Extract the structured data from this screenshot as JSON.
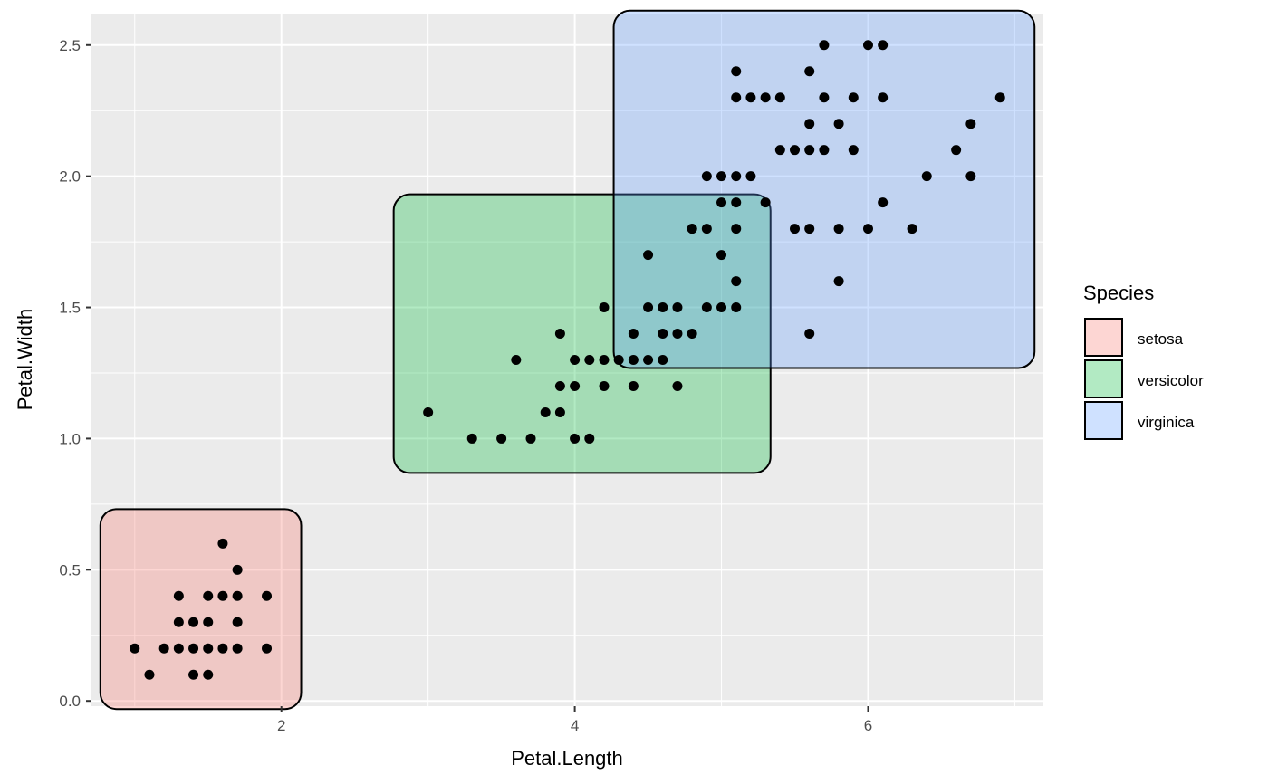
{
  "chart_data": {
    "type": "scatter",
    "xlabel": "Petal.Length",
    "ylabel": "Petal.Width",
    "xlim": [
      0.705,
      7.195
    ],
    "ylim": [
      -0.02,
      2.62
    ],
    "x_ticks": [
      2,
      4,
      6
    ],
    "x_tick_labels": [
      "2",
      "4",
      "6"
    ],
    "y_ticks": [
      0.0,
      0.5,
      1.0,
      1.5,
      2.0,
      2.5
    ],
    "y_tick_labels": [
      "0.0",
      "0.5",
      "1.0",
      "1.5",
      "2.0",
      "2.5"
    ],
    "grid": true,
    "legend_placement": "right",
    "legend_title": "Species",
    "colors": {
      "panel_background": "#EBEBEB",
      "grid": "#FFFFFF",
      "point": "#000000",
      "setosa": "#F8766D",
      "versicolor": "#00BA38",
      "virginica": "#619CFF"
    },
    "groups": [
      {
        "name": "setosa",
        "xmin": 1.0,
        "xmax": 1.9,
        "ymin": 0.1,
        "ymax": 0.6
      },
      {
        "name": "versicolor",
        "xmin": 3.0,
        "xmax": 5.1,
        "ymin": 1.0,
        "ymax": 1.8
      },
      {
        "name": "virginica",
        "xmin": 4.5,
        "xmax": 6.9,
        "ymin": 1.4,
        "ymax": 2.5
      }
    ],
    "points": [
      [
        1.0,
        0.2
      ],
      [
        1.1,
        0.1
      ],
      [
        1.2,
        0.2
      ],
      [
        1.3,
        0.2
      ],
      [
        1.3,
        0.3
      ],
      [
        1.3,
        0.4
      ],
      [
        1.4,
        0.1
      ],
      [
        1.4,
        0.2
      ],
      [
        1.4,
        0.3
      ],
      [
        1.5,
        0.1
      ],
      [
        1.5,
        0.2
      ],
      [
        1.5,
        0.3
      ],
      [
        1.5,
        0.4
      ],
      [
        1.6,
        0.2
      ],
      [
        1.6,
        0.4
      ],
      [
        1.6,
        0.6
      ],
      [
        1.7,
        0.2
      ],
      [
        1.7,
        0.3
      ],
      [
        1.7,
        0.4
      ],
      [
        1.7,
        0.5
      ],
      [
        1.9,
        0.2
      ],
      [
        1.9,
        0.4
      ],
      [
        3.0,
        1.1
      ],
      [
        3.3,
        1.0
      ],
      [
        3.5,
        1.0
      ],
      [
        3.6,
        1.3
      ],
      [
        3.7,
        1.0
      ],
      [
        3.8,
        1.1
      ],
      [
        3.9,
        1.1
      ],
      [
        3.9,
        1.2
      ],
      [
        3.9,
        1.4
      ],
      [
        4.0,
        1.0
      ],
      [
        4.0,
        1.2
      ],
      [
        4.0,
        1.3
      ],
      [
        4.1,
        1.0
      ],
      [
        4.1,
        1.3
      ],
      [
        4.2,
        1.2
      ],
      [
        4.2,
        1.3
      ],
      [
        4.2,
        1.5
      ],
      [
        4.3,
        1.3
      ],
      [
        4.4,
        1.2
      ],
      [
        4.4,
        1.3
      ],
      [
        4.4,
        1.4
      ],
      [
        4.5,
        1.3
      ],
      [
        4.5,
        1.5
      ],
      [
        4.6,
        1.3
      ],
      [
        4.6,
        1.4
      ],
      [
        4.6,
        1.5
      ],
      [
        4.7,
        1.2
      ],
      [
        4.7,
        1.4
      ],
      [
        4.7,
        1.5
      ],
      [
        4.8,
        1.4
      ],
      [
        4.8,
        1.8
      ],
      [
        4.9,
        1.5
      ],
      [
        5.0,
        1.7
      ],
      [
        5.1,
        1.6
      ],
      [
        4.5,
        1.7
      ],
      [
        4.8,
        1.8
      ],
      [
        4.9,
        1.8
      ],
      [
        4.9,
        2.0
      ],
      [
        5.0,
        1.5
      ],
      [
        5.0,
        1.9
      ],
      [
        5.0,
        2.0
      ],
      [
        5.1,
        1.5
      ],
      [
        5.1,
        1.8
      ],
      [
        5.1,
        1.9
      ],
      [
        5.1,
        2.0
      ],
      [
        5.1,
        2.3
      ],
      [
        5.1,
        2.4
      ],
      [
        5.2,
        2.0
      ],
      [
        5.2,
        2.3
      ],
      [
        5.3,
        1.9
      ],
      [
        5.3,
        2.3
      ],
      [
        5.4,
        2.1
      ],
      [
        5.4,
        2.3
      ],
      [
        5.5,
        1.8
      ],
      [
        5.5,
        2.1
      ],
      [
        5.6,
        1.4
      ],
      [
        5.6,
        1.8
      ],
      [
        5.6,
        2.1
      ],
      [
        5.6,
        2.2
      ],
      [
        5.6,
        2.4
      ],
      [
        5.7,
        2.1
      ],
      [
        5.7,
        2.3
      ],
      [
        5.7,
        2.5
      ],
      [
        5.8,
        1.6
      ],
      [
        5.8,
        1.8
      ],
      [
        5.8,
        2.2
      ],
      [
        5.9,
        2.1
      ],
      [
        5.9,
        2.3
      ],
      [
        6.0,
        1.8
      ],
      [
        6.0,
        2.5
      ],
      [
        6.1,
        1.9
      ],
      [
        6.1,
        2.3
      ],
      [
        6.1,
        2.5
      ],
      [
        6.3,
        1.8
      ],
      [
        6.4,
        2.0
      ],
      [
        6.6,
        2.1
      ],
      [
        6.7,
        2.0
      ],
      [
        6.7,
        2.2
      ],
      [
        6.9,
        2.3
      ]
    ]
  }
}
